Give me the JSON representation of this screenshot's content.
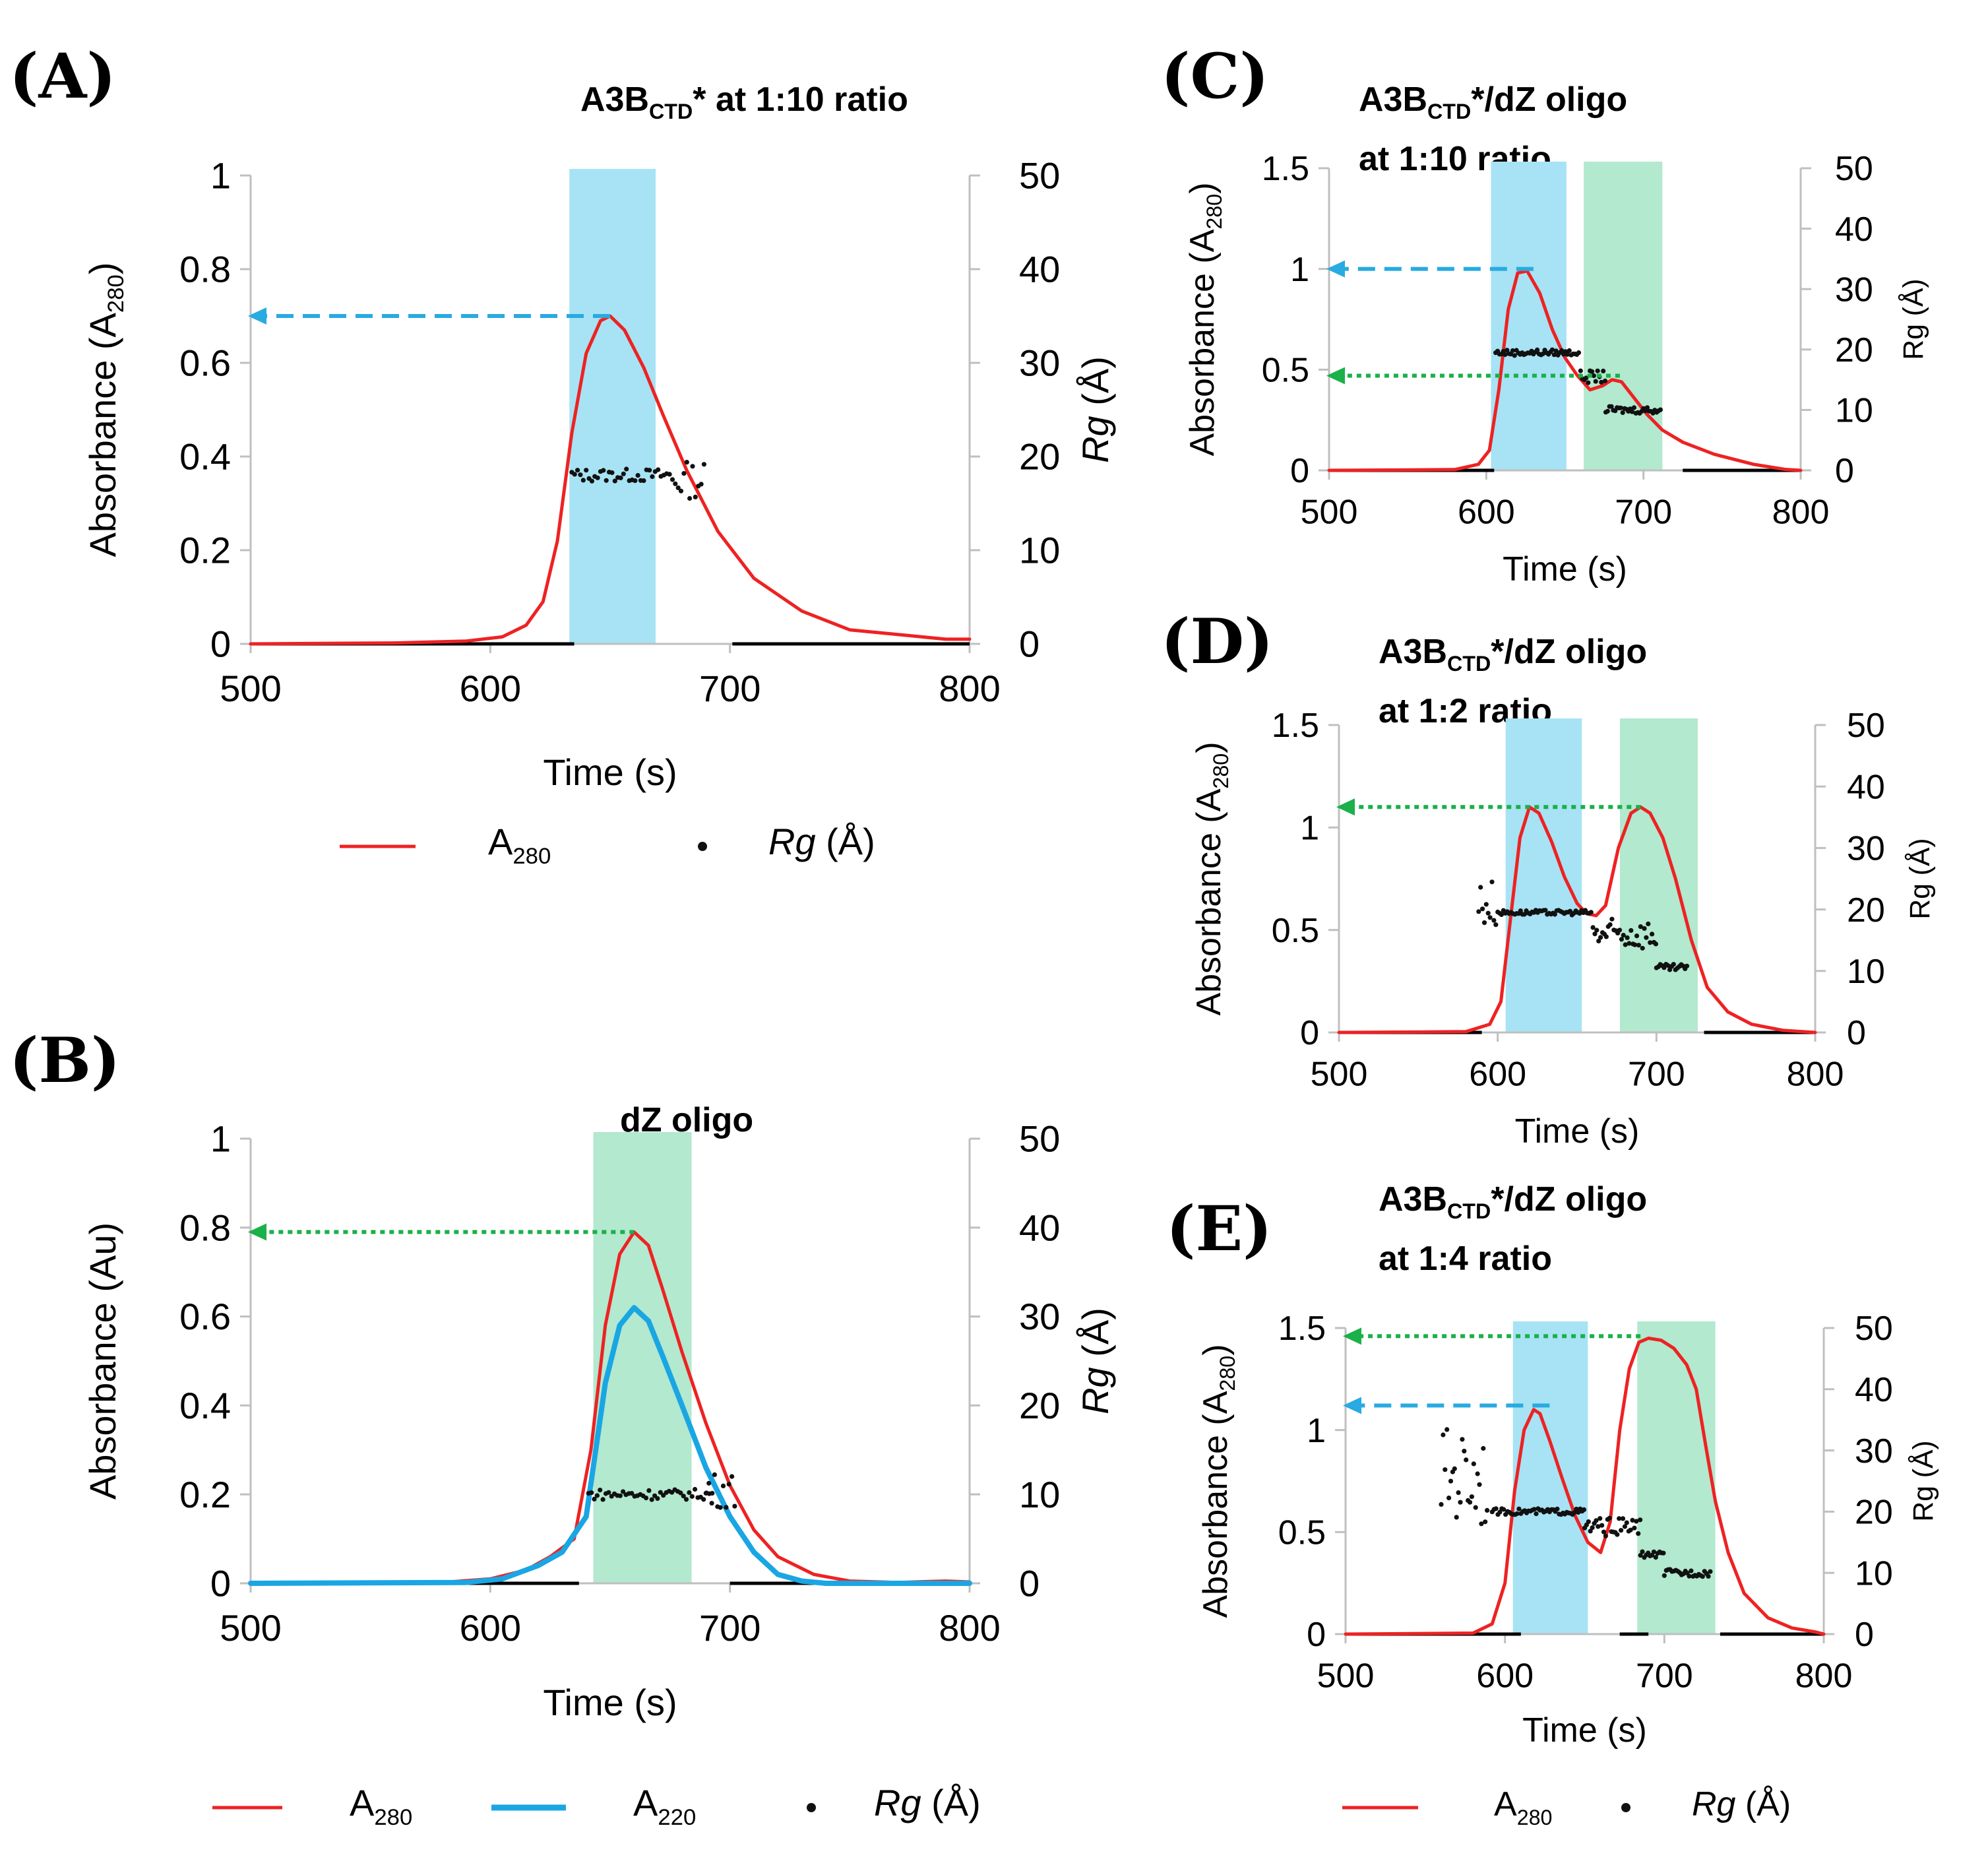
{
  "chart_data": [
    {
      "panel": "(A)",
      "type": "line",
      "title_parts": [
        "A3B",
        "CTD",
        "* at 1:10 ratio"
      ],
      "xlabel": "Time (s)",
      "ylabel_parts": [
        "Absorbance (A",
        "280",
        ")"
      ],
      "y2label_parts": [
        "Rg",
        " (Å)"
      ],
      "xlim": [
        500,
        800
      ],
      "ylim": [
        0,
        1
      ],
      "y2lim": [
        0,
        50
      ],
      "xticks": [
        "500",
        "600",
        "700",
        "800"
      ],
      "yticks": [
        "0",
        "0.2",
        "0.4",
        "0.6",
        "0.8",
        "1"
      ],
      "y2ticks": [
        "0",
        "10",
        "20",
        "30",
        "40",
        "50"
      ],
      "shaded": [
        {
          "x0": 633,
          "x1": 669,
          "color": "#a7e3f4"
        }
      ],
      "arrows": [
        {
          "from_x": 650,
          "to_x": 500,
          "y": 0.7,
          "style": "dashed",
          "color": "#29aae1"
        }
      ],
      "series": [
        {
          "name": "A280",
          "color": "#ee2222",
          "width": 5,
          "x": [
            500,
            560,
            590,
            605,
            615,
            622,
            628,
            634,
            640,
            646,
            650,
            656,
            664,
            672,
            682,
            695,
            710,
            730,
            750,
            770,
            790,
            800
          ],
          "y": [
            0,
            0.002,
            0.006,
            0.015,
            0.04,
            0.09,
            0.22,
            0.45,
            0.62,
            0.69,
            0.7,
            0.67,
            0.59,
            0.49,
            0.37,
            0.24,
            0.14,
            0.07,
            0.03,
            0.02,
            0.01,
            0.01
          ]
        }
      ],
      "rg": {
        "segments": [
          [
            634,
            676,
            18,
            0.7
          ],
          [
            676,
            690,
            17.5,
            2.0
          ]
        ],
        "baseline": [
          [
            500,
            635
          ],
          [
            701,
            800
          ]
        ]
      },
      "legend": [
        {
          "kind": "line",
          "color": "#ee2222",
          "label_parts": [
            "A",
            "280"
          ]
        },
        {
          "kind": "dot",
          "label_parts": [
            "Rg",
            " (Å)"
          ]
        }
      ]
    },
    {
      "panel": "(B)",
      "type": "line",
      "title_parts": [
        "dZ oligo",
        "",
        ""
      ],
      "xlabel": "Time (s)",
      "ylabel_parts": [
        "Absorbance (Au)",
        "",
        ""
      ],
      "y2label_parts": [
        "Rg",
        " (Å)"
      ],
      "xlim": [
        500,
        800
      ],
      "ylim": [
        0,
        1
      ],
      "y2lim": [
        0,
        50
      ],
      "xticks": [
        "500",
        "600",
        "700",
        "800"
      ],
      "yticks": [
        "0",
        "0.2",
        "0.4",
        "0.6",
        "0.8",
        "1"
      ],
      "y2ticks": [
        "0",
        "10",
        "20",
        "30",
        "40",
        "50"
      ],
      "shaded": [
        {
          "x0": 643,
          "x1": 684,
          "color": "#b2e9cf"
        }
      ],
      "arrows": [
        {
          "from_x": 660,
          "to_x": 500,
          "y": 0.79,
          "style": "dotted",
          "color": "#1bb04a"
        }
      ],
      "series": [
        {
          "name": "A280",
          "color": "#ee2222",
          "width": 5,
          "x": [
            500,
            580,
            600,
            615,
            625,
            635,
            642,
            648,
            654,
            660,
            666,
            672,
            680,
            690,
            700,
            710,
            720,
            735,
            750,
            770,
            790,
            800
          ],
          "y": [
            0,
            0.002,
            0.01,
            0.03,
            0.06,
            0.1,
            0.3,
            0.58,
            0.74,
            0.79,
            0.76,
            0.66,
            0.52,
            0.36,
            0.22,
            0.12,
            0.06,
            0.02,
            0.005,
            0.002,
            0.005,
            0.003
          ]
        },
        {
          "name": "A220",
          "color": "#1aa6e3",
          "width": 8,
          "x": [
            500,
            590,
            605,
            620,
            630,
            640,
            648,
            654,
            660,
            666,
            672,
            680,
            690,
            700,
            710,
            720,
            730,
            740,
            800
          ],
          "y": [
            0,
            0.002,
            0.01,
            0.04,
            0.07,
            0.15,
            0.45,
            0.58,
            0.62,
            0.59,
            0.51,
            0.4,
            0.26,
            0.15,
            0.07,
            0.02,
            0.005,
            0,
            0
          ]
        }
      ],
      "rg": {
        "segments": [
          [
            641,
            693,
            10,
            0.6
          ],
          [
            690,
            703,
            10.5,
            2.0
          ]
        ],
        "baseline": [
          [
            500,
            637
          ],
          [
            700,
            800
          ]
        ]
      },
      "legend": [
        {
          "kind": "line",
          "color": "#ee2222",
          "label_parts": [
            "A",
            "280"
          ]
        },
        {
          "kind": "thickline",
          "color": "#1aa6e3",
          "label_parts": [
            "A",
            "220"
          ]
        },
        {
          "kind": "dot",
          "label_parts": [
            "Rg",
            " (Å)"
          ]
        }
      ]
    },
    {
      "panel": "(C)",
      "type": "line",
      "title_parts": [
        "A3B",
        "CTD",
        "*/dZ oligo"
      ],
      "title_line2": "at 1:10 ratio",
      "xlabel": "Time (s)",
      "ylabel_parts": [
        "Absorbance (A",
        "280",
        ")"
      ],
      "y2label_parts": [
        "Rg (Å)",
        ""
      ],
      "xlim": [
        500,
        800
      ],
      "ylim": [
        0,
        1.5
      ],
      "y2lim": [
        0,
        50
      ],
      "xticks": [
        "500",
        "600",
        "700",
        "800"
      ],
      "yticks": [
        "0",
        "0.5",
        "1",
        "1.5"
      ],
      "y2ticks": [
        "0",
        "10",
        "20",
        "30",
        "40",
        "50"
      ],
      "shaded": [
        {
          "x0": 603,
          "x1": 651,
          "color": "#a7e3f4"
        },
        {
          "x0": 662,
          "x1": 712,
          "color": "#b2e9cf"
        }
      ],
      "arrows": [
        {
          "from_x": 630,
          "to_x": 500,
          "y": 1.0,
          "style": "dashed",
          "color": "#29aae1"
        },
        {
          "from_x": 685,
          "to_x": 500,
          "y": 0.47,
          "style": "dotted",
          "color": "#1bb04a"
        }
      ],
      "series": [
        {
          "name": "A280",
          "color": "#ee2222",
          "width": 5,
          "x": [
            500,
            580,
            595,
            602,
            608,
            614,
            620,
            626,
            634,
            642,
            650,
            658,
            666,
            674,
            680,
            686,
            694,
            702,
            712,
            725,
            745,
            770,
            790,
            800
          ],
          "y": [
            0,
            0.004,
            0.03,
            0.1,
            0.4,
            0.8,
            0.98,
            0.99,
            0.88,
            0.7,
            0.56,
            0.47,
            0.4,
            0.42,
            0.45,
            0.44,
            0.36,
            0.28,
            0.2,
            0.14,
            0.08,
            0.03,
            0.005,
            0
          ]
        }
      ],
      "rg": {
        "segments": [
          [
            606,
            660,
            19.5,
            0.5
          ],
          [
            660,
            676,
            15.5,
            1.0
          ],
          [
            676,
            712,
            10,
            0.6
          ]
        ],
        "baseline": [
          [
            500,
            605
          ],
          [
            725,
            800
          ]
        ]
      },
      "legend": []
    },
    {
      "panel": "(D)",
      "type": "line",
      "title_parts": [
        "A3B",
        "CTD",
        "*/dZ oligo"
      ],
      "title_line2": "at 1:2 ratio",
      "xlabel": "Time (s)",
      "ylabel_parts": [
        "Absorbance (A",
        "280",
        ")"
      ],
      "y2label_parts": [
        "Rg (Å)",
        ""
      ],
      "xlim": [
        500,
        800
      ],
      "ylim": [
        0,
        1.5
      ],
      "y2lim": [
        0,
        50
      ],
      "xticks": [
        "500",
        "600",
        "700",
        "800"
      ],
      "yticks": [
        "0",
        "0.5",
        "1",
        "1.5"
      ],
      "y2ticks": [
        "0",
        "10",
        "20",
        "30",
        "40",
        "50"
      ],
      "shaded": [
        {
          "x0": 605,
          "x1": 653,
          "color": "#a7e3f4"
        },
        {
          "x0": 677,
          "x1": 726,
          "color": "#b2e9cf"
        }
      ],
      "arrows": [
        {
          "from_x": 690,
          "to_x": 500,
          "y": 1.1,
          "style": "dotted",
          "color": "#1bb04a"
        }
      ],
      "series": [
        {
          "name": "A280",
          "color": "#ee2222",
          "width": 5,
          "x": [
            500,
            580,
            595,
            602,
            608,
            614,
            620,
            626,
            634,
            642,
            650,
            656,
            662,
            668,
            676,
            684,
            690,
            696,
            704,
            712,
            722,
            732,
            745,
            760,
            780,
            800
          ],
          "y": [
            0,
            0.004,
            0.04,
            0.15,
            0.55,
            0.95,
            1.1,
            1.07,
            0.93,
            0.76,
            0.63,
            0.58,
            0.57,
            0.62,
            0.9,
            1.07,
            1.1,
            1.07,
            0.95,
            0.75,
            0.45,
            0.22,
            0.1,
            0.04,
            0.01,
            0
          ]
        }
      ],
      "rg": {
        "segments": [
          [
            588,
            600,
            21,
            4.0
          ],
          [
            600,
            660,
            19.5,
            0.4
          ],
          [
            660,
            700,
            16,
            2.5
          ],
          [
            700,
            720,
            10.5,
            0.6
          ]
        ],
        "baseline": [
          [
            500,
            590
          ],
          [
            730,
            800
          ]
        ]
      },
      "legend": []
    },
    {
      "panel": "(E)",
      "type": "line",
      "title_parts": [
        "A3B",
        "CTD",
        "*/dZ oligo"
      ],
      "title_line2": "at 1:4 ratio",
      "xlabel": "Time (s)",
      "ylabel_parts": [
        "Absorbance (A",
        "280",
        ")"
      ],
      "y2label_parts": [
        "Rg (Å)",
        ""
      ],
      "xlim": [
        500,
        800
      ],
      "ylim": [
        0,
        1.5
      ],
      "y2lim": [
        0,
        50
      ],
      "xticks": [
        "500",
        "600",
        "700",
        "800"
      ],
      "yticks": [
        "0",
        "0.5",
        "1",
        "1.5"
      ],
      "y2ticks": [
        "0",
        "10",
        "20",
        "30",
        "40",
        "50"
      ],
      "shaded": [
        {
          "x0": 605,
          "x1": 652,
          "color": "#a7e3f4"
        },
        {
          "x0": 683,
          "x1": 732,
          "color": "#b2e9cf"
        }
      ],
      "arrows": [
        {
          "from_x": 685,
          "to_x": 500,
          "y": 1.46,
          "style": "dotted",
          "color": "#1bb04a"
        },
        {
          "from_x": 628,
          "to_x": 500,
          "y": 1.12,
          "style": "dashed",
          "color": "#29aae1"
        }
      ],
      "series": [
        {
          "name": "A280",
          "color": "#ee2222",
          "width": 5,
          "x": [
            500,
            580,
            592,
            600,
            606,
            612,
            618,
            622,
            628,
            636,
            644,
            652,
            660,
            666,
            672,
            678,
            684,
            690,
            698,
            706,
            714,
            720,
            726,
            732,
            740,
            750,
            765,
            780,
            795,
            800
          ],
          "y": [
            0,
            0.005,
            0.05,
            0.25,
            0.7,
            1.0,
            1.1,
            1.08,
            0.95,
            0.76,
            0.58,
            0.45,
            0.4,
            0.55,
            1.0,
            1.3,
            1.43,
            1.45,
            1.44,
            1.4,
            1.32,
            1.2,
            0.92,
            0.65,
            0.4,
            0.2,
            0.08,
            0.03,
            0.01,
            0
          ]
        }
      ],
      "rg": {
        "segments": [
          [
            560,
            590,
            26,
            8.0
          ],
          [
            592,
            650,
            20,
            0.5
          ],
          [
            650,
            685,
            17.5,
            1.5
          ],
          [
            685,
            700,
            13,
            0.5
          ],
          [
            700,
            730,
            10,
            0.6
          ]
        ],
        "baseline": [
          [
            500,
            610
          ],
          [
            672,
            690
          ],
          [
            735,
            800
          ]
        ]
      },
      "legend": [
        {
          "kind": "line",
          "color": "#ee2222",
          "label_parts": [
            "A",
            "280"
          ]
        },
        {
          "kind": "dot",
          "label_parts": [
            "Rg",
            " (Å)"
          ]
        }
      ]
    }
  ]
}
